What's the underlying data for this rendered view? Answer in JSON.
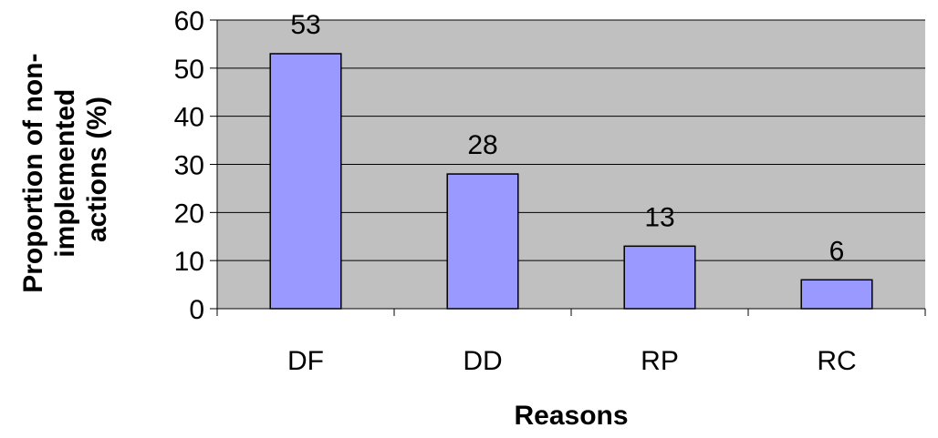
{
  "chart_data": {
    "type": "bar",
    "title": "",
    "categories": [
      "DF",
      "DD",
      "RP",
      "RC"
    ],
    "values": [
      53,
      28,
      13,
      6
    ],
    "data_labels": [
      "53",
      "28",
      "13",
      "6"
    ],
    "xlabel": "Reasons",
    "ylabel_lines": [
      "Proportion of non-",
      "implemented",
      "actions (%)"
    ],
    "ylim": [
      0,
      60
    ],
    "yticks": [
      0,
      10,
      20,
      30,
      40,
      50,
      60
    ],
    "grid": true,
    "legend": "none",
    "colors": {
      "bar_fill": "#9999ff",
      "bar_stroke": "#000000",
      "plot_background": "#c0c0c0",
      "gridline": "#000000"
    }
  }
}
